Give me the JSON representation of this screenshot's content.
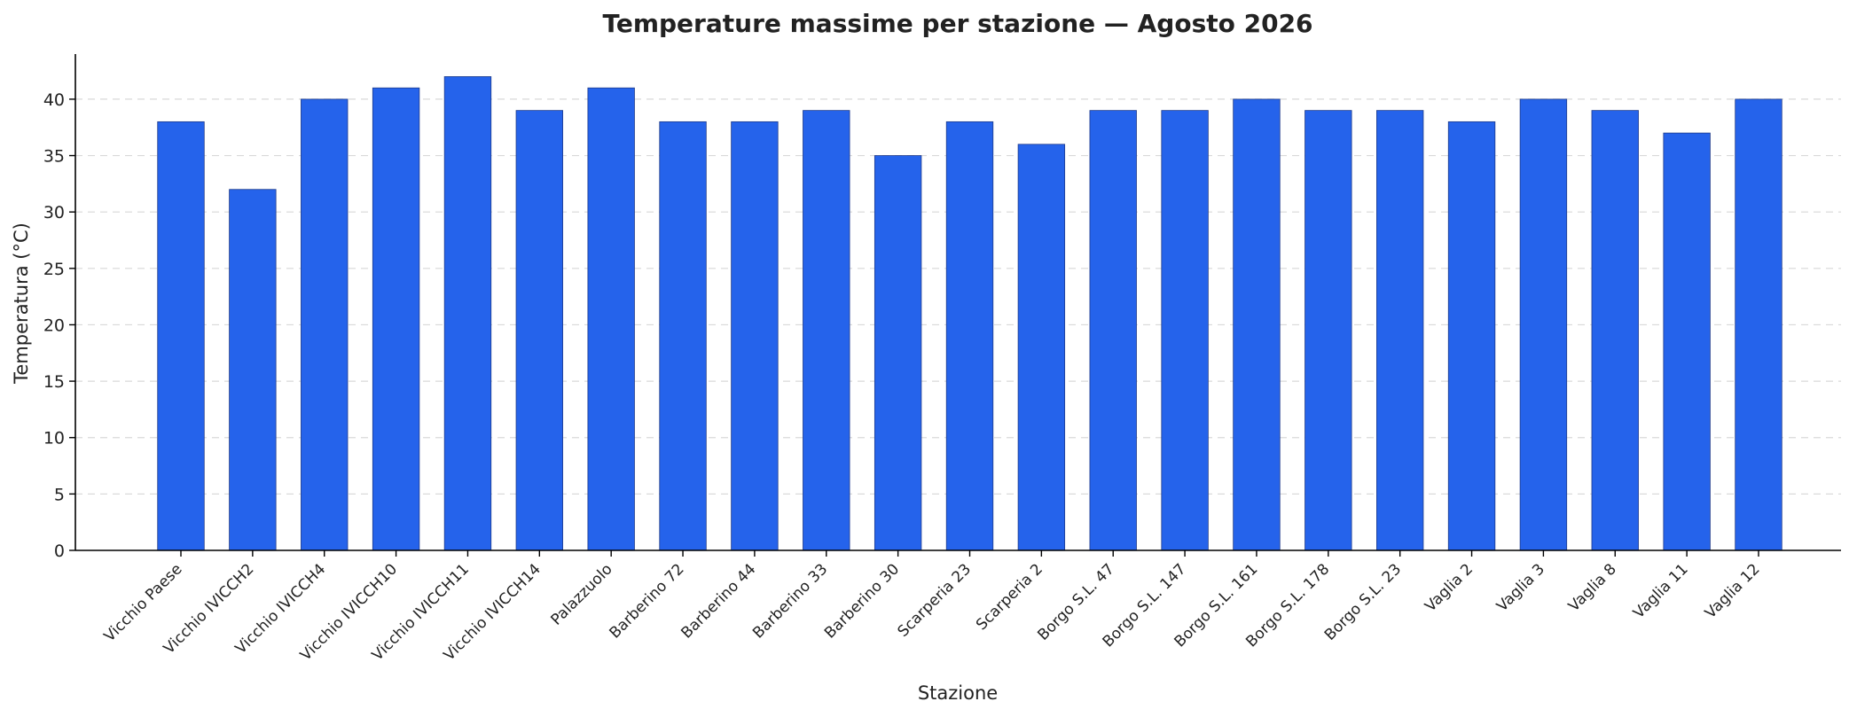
{
  "chart_data": {
    "type": "bar",
    "title": "Temperature massime per stazione — Agosto 2026",
    "xlabel": "Stazione",
    "ylabel": "Temperatura (°C)",
    "ylim": [
      0,
      44
    ],
    "yticks": [
      0,
      5,
      10,
      15,
      20,
      25,
      30,
      35,
      40
    ],
    "grid": "y",
    "legend": "none",
    "bar_color": "#2563eb",
    "bar_edge_color": "#1e3a8a",
    "categories": [
      "Vicchio Paese",
      "Vicchio IVICCH2",
      "Vicchio IVICCH4",
      "Vicchio IVICCH10",
      "Vicchio IVICCH11",
      "Vicchio IVICCH14",
      "Palazzuolo",
      "Barberino 72",
      "Barberino 44",
      "Barberino 33",
      "Barberino 30",
      "Scarperia 23",
      "Scarperia 2",
      "Borgo S.L. 47",
      "Borgo S.L. 147",
      "Borgo S.L. 161",
      "Borgo S.L. 178",
      "Borgo S.L. 23",
      "Vaglia 2",
      "Vaglia 3",
      "Vaglia 8",
      "Vaglia 11",
      "Vaglia 12"
    ],
    "values": [
      38,
      32,
      40,
      41,
      42,
      39,
      41,
      38,
      38,
      39,
      35,
      38,
      36,
      39,
      39,
      40,
      39,
      39,
      38,
      40,
      39,
      37,
      40
    ]
  }
}
